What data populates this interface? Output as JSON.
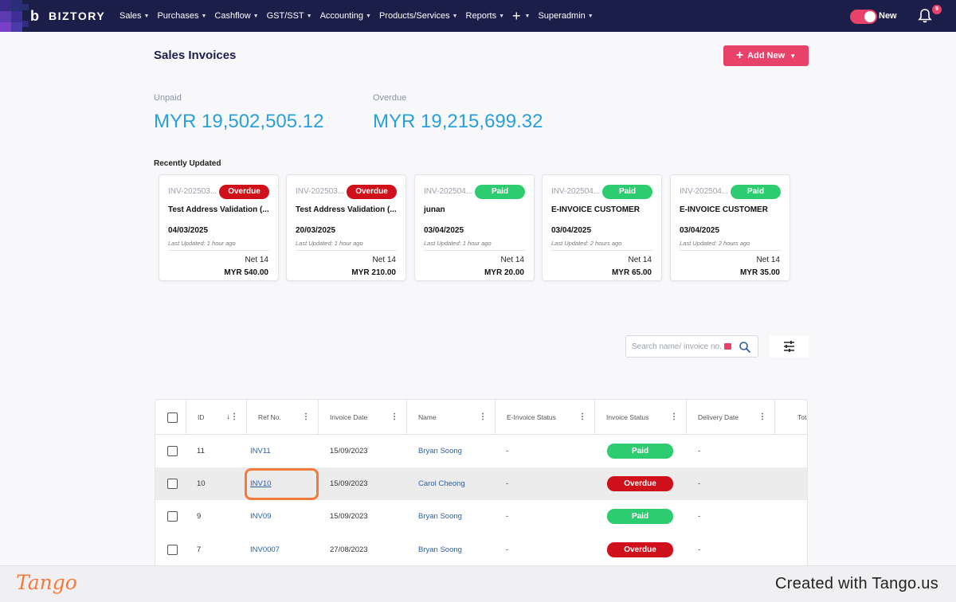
{
  "nav": {
    "brand": "BIZTORY",
    "items": [
      {
        "label": "Sales"
      },
      {
        "label": "Purchases"
      },
      {
        "label": "Cashflow"
      },
      {
        "label": "GST/SST"
      },
      {
        "label": "Accounting"
      },
      {
        "label": "Products/Services"
      },
      {
        "label": "Reports"
      }
    ],
    "plus": "+",
    "user_menu": "Superadmin",
    "toggle_label": "New",
    "notification_count": "9"
  },
  "header": {
    "title": "Sales Invoices",
    "add_button": "Add New"
  },
  "summary": {
    "unpaid_label": "Unpaid",
    "unpaid_value": "MYR 19,502,505.12",
    "overdue_label": "Overdue",
    "overdue_value": "MYR 19,215,699.32"
  },
  "recent": {
    "label": "Recently Updated",
    "cards": [
      {
        "ref": "INV-202503...",
        "status": "Overdue",
        "customer": "Test Address Validation (...",
        "date": "04/03/2025",
        "updated": "Last Updated: 1 hour ago",
        "term": "Net 14",
        "amount": "MYR 540.00"
      },
      {
        "ref": "INV-202503...",
        "status": "Overdue",
        "customer": "Test Address Validation (...",
        "date": "20/03/2025",
        "updated": "Last Updated: 1 hour ago",
        "term": "Net 14",
        "amount": "MYR 210.00"
      },
      {
        "ref": "INV-202504...",
        "status": "Paid",
        "customer": "junan",
        "date": "03/04/2025",
        "updated": "Last Updated: 1 hour ago",
        "term": "Net 14",
        "amount": "MYR 20.00"
      },
      {
        "ref": "INV-202504...",
        "status": "Paid",
        "customer": "E-INVOICE CUSTOMER",
        "date": "03/04/2025",
        "updated": "Last Updated: 2 hours ago",
        "term": "Net 14",
        "amount": "MYR 65.00"
      },
      {
        "ref": "INV-202504...",
        "status": "Paid",
        "customer": "E-INVOICE CUSTOMER",
        "date": "03/04/2025",
        "updated": "Last Updated: 2 hours ago",
        "term": "Net 14",
        "amount": "MYR 35.00"
      }
    ]
  },
  "search": {
    "placeholder": "Search name/ invoice no."
  },
  "table": {
    "columns": [
      "ID",
      "Ref No.",
      "Invoice Date",
      "Name",
      "E-Invoice Status",
      "Invoice Status",
      "Delivery Date",
      "Tota"
    ],
    "rows": [
      {
        "id": "11",
        "ref": "INV11",
        "date": "15/09/2023",
        "name": "Bryan Soong",
        "einv": "-",
        "status": "Paid",
        "delivery": "-"
      },
      {
        "id": "10",
        "ref": "INV10",
        "date": "15/09/2023",
        "name": "Carol Cheong",
        "einv": "-",
        "status": "Overdue",
        "delivery": "-"
      },
      {
        "id": "9",
        "ref": "INV09",
        "date": "15/09/2023",
        "name": "Bryan Soong",
        "einv": "-",
        "status": "Paid",
        "delivery": "-"
      },
      {
        "id": "7",
        "ref": "INV0007",
        "date": "27/08/2023",
        "name": "Bryan Soong",
        "einv": "-",
        "status": "Overdue",
        "delivery": "-"
      }
    ]
  },
  "footer": {
    "logo": "Tango",
    "credit": "Created with Tango.us"
  },
  "colors": {
    "nav_bg": "#1c1e4a",
    "accent": "#e8416a",
    "summary_blue": "#2a9fd8",
    "paid": "#2ecc71",
    "overdue": "#d0101b",
    "highlight": "#f47a3c"
  }
}
